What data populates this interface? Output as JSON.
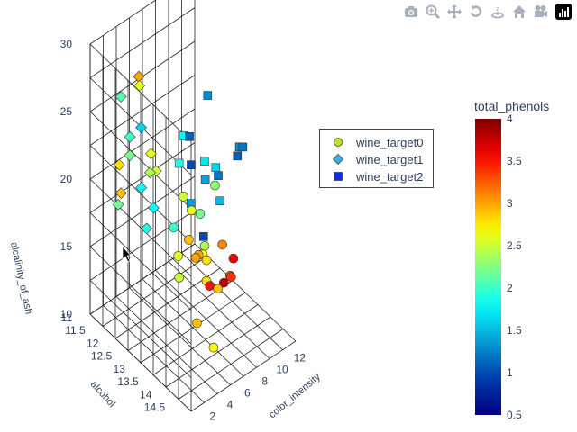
{
  "toolbar": {
    "icons": [
      "camera-icon",
      "zoom-icon",
      "pan-icon",
      "orbit-rotation-icon",
      "turntable-rotation-icon",
      "home-icon",
      "camera-view-icon",
      "plotly-logo-icon"
    ]
  },
  "legend": {
    "items": [
      {
        "label": "wine_target0",
        "symbol": "circle",
        "color": "#b8e51c"
      },
      {
        "label": "wine_target1",
        "symbol": "diamond",
        "color": "#35b6d9"
      },
      {
        "label": "wine_target2",
        "symbol": "square",
        "color": "#0d2fe0"
      }
    ]
  },
  "chart_data": {
    "type": "scatter3d",
    "title": "",
    "axes": {
      "x": {
        "label": "alcohol",
        "range": [
          11,
          14.8
        ],
        "ticks": [
          "11",
          "11.5",
          "12",
          "12.5",
          "13",
          "13.5",
          "14",
          "14.5"
        ]
      },
      "y": {
        "label": "color_intensity",
        "range": [
          1,
          13
        ],
        "ticks": [
          "2",
          "4",
          "6",
          "8",
          "10",
          "12"
        ]
      },
      "z": {
        "label": "alcalinity_of_ash",
        "range": [
          10,
          30
        ],
        "ticks": [
          "10",
          "15",
          "20",
          "25",
          "30"
        ]
      }
    },
    "colorbar": {
      "title": "total_phenols",
      "range": [
        0.5,
        4
      ],
      "ticks": [
        "0.5",
        "1",
        "1.5",
        "2",
        "2.5",
        "3",
        "3.5",
        "4"
      ],
      "colorscale": "jet"
    },
    "series": [
      {
        "name": "wine_target0",
        "symbol": "circle",
        "points": [
          {
            "x": 13.9,
            "y": 5.5,
            "z": 16,
            "c": 2.8
          },
          {
            "x": 14.1,
            "y": 6.2,
            "z": 15.5,
            "c": 2.9
          },
          {
            "x": 13.8,
            "y": 4.9,
            "z": 18,
            "c": 3.0
          },
          {
            "x": 14.3,
            "y": 7.0,
            "z": 16.5,
            "c": 3.3
          },
          {
            "x": 13.2,
            "y": 4.4,
            "z": 17,
            "c": 2.6
          },
          {
            "x": 13.6,
            "y": 6.8,
            "z": 14.5,
            "c": 3.5
          },
          {
            "x": 14.0,
            "y": 5.0,
            "z": 19,
            "c": 2.4
          },
          {
            "x": 13.4,
            "y": 3.9,
            "z": 16,
            "c": 2.5
          },
          {
            "x": 13.7,
            "y": 5.7,
            "z": 17.5,
            "c": 2.7
          },
          {
            "x": 14.2,
            "y": 4.6,
            "z": 18.5,
            "c": 2.8
          },
          {
            "x": 13.5,
            "y": 6.0,
            "z": 20,
            "c": 2.2
          },
          {
            "x": 13.9,
            "y": 7.5,
            "z": 15,
            "c": 3.8
          },
          {
            "x": 13.3,
            "y": 5.3,
            "z": 18,
            "c": 2.9
          },
          {
            "x": 14.4,
            "y": 5.8,
            "z": 19.5,
            "c": 3.1
          },
          {
            "x": 13.1,
            "y": 4.2,
            "z": 19,
            "c": 2.0
          },
          {
            "x": 14.5,
            "y": 6.5,
            "z": 17,
            "c": 3.4
          },
          {
            "x": 13.8,
            "y": 8.9,
            "z": 16,
            "c": 3.6
          },
          {
            "x": 13.6,
            "y": 4.7,
            "z": 21,
            "c": 2.6
          },
          {
            "x": 14.1,
            "y": 3.8,
            "z": 14,
            "c": 2.9
          },
          {
            "x": 13.0,
            "y": 5.6,
            "z": 20.5,
            "c": 2.5
          },
          {
            "x": 14.3,
            "y": 5.1,
            "z": 12,
            "c": 2.7
          },
          {
            "x": 13.7,
            "y": 7.1,
            "z": 22,
            "c": 2.3
          },
          {
            "x": 13.2,
            "y": 6.4,
            "z": 16,
            "c": 3.0
          }
        ]
      },
      {
        "name": "wine_target1",
        "symbol": "diamond",
        "points": [
          {
            "x": 12.3,
            "y": 2.9,
            "z": 21,
            "c": 1.8
          },
          {
            "x": 12.0,
            "y": 2.5,
            "z": 23,
            "c": 2.2
          },
          {
            "x": 12.6,
            "y": 3.1,
            "z": 24,
            "c": 2.6
          },
          {
            "x": 11.8,
            "y": 2.1,
            "z": 20,
            "c": 2.9
          },
          {
            "x": 12.4,
            "y": 3.6,
            "z": 22,
            "c": 2.4
          },
          {
            "x": 12.2,
            "y": 1.9,
            "z": 25,
            "c": 2.0
          },
          {
            "x": 11.6,
            "y": 2.7,
            "z": 26.5,
            "c": 2.1
          },
          {
            "x": 12.7,
            "y": 2.3,
            "z": 19,
            "c": 1.9
          },
          {
            "x": 12.1,
            "y": 3.3,
            "z": 28,
            "c": 2.6
          },
          {
            "x": 11.9,
            "y": 1.6,
            "z": 22.5,
            "c": 2.8
          },
          {
            "x": 12.5,
            "y": 2.0,
            "z": 30,
            "c": 3.0
          },
          {
            "x": 12.3,
            "y": 4.6,
            "z": 21.5,
            "c": 2.5
          },
          {
            "x": 11.4,
            "y": 3.0,
            "z": 18,
            "c": 2.2
          },
          {
            "x": 12.8,
            "y": 2.8,
            "z": 20.5,
            "c": 1.8
          },
          {
            "x": 12.0,
            "y": 3.8,
            "z": 24.5,
            "c": 1.6
          }
        ]
      },
      {
        "name": "wine_target2",
        "symbol": "square",
        "points": [
          {
            "x": 13.1,
            "y": 7.8,
            "z": 21,
            "c": 1.4
          },
          {
            "x": 12.9,
            "y": 9.9,
            "z": 20,
            "c": 1.2
          },
          {
            "x": 13.3,
            "y": 8.4,
            "z": 22,
            "c": 1.6
          },
          {
            "x": 12.8,
            "y": 6.9,
            "z": 24,
            "c": 1.1
          },
          {
            "x": 13.5,
            "y": 10.5,
            "z": 23,
            "c": 1.3
          },
          {
            "x": 13.0,
            "y": 5.6,
            "z": 25,
            "c": 1.8
          },
          {
            "x": 13.2,
            "y": 9.2,
            "z": 19,
            "c": 1.5
          },
          {
            "x": 12.7,
            "y": 7.4,
            "z": 21.5,
            "c": 1.0
          },
          {
            "x": 13.4,
            "y": 11.2,
            "z": 22.5,
            "c": 1.2
          },
          {
            "x": 12.5,
            "y": 8.0,
            "z": 18,
            "c": 1.4
          },
          {
            "x": 13.6,
            "y": 6.2,
            "z": 24,
            "c": 1.7
          },
          {
            "x": 12.9,
            "y": 12.1,
            "z": 20.5,
            "c": 1.1
          },
          {
            "x": 13.1,
            "y": 4.8,
            "z": 23.5,
            "c": 1.9
          },
          {
            "x": 12.6,
            "y": 9.6,
            "z": 25.5,
            "c": 1.3
          },
          {
            "x": 13.3,
            "y": 7.0,
            "z": 17.5,
            "c": 1.0
          }
        ]
      }
    ]
  }
}
